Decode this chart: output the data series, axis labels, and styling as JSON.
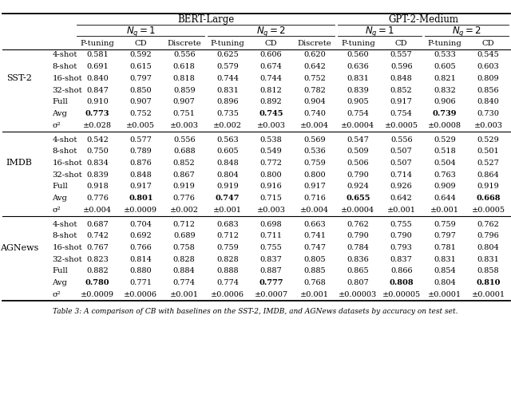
{
  "header_bert": "BERT-Large",
  "header_gpt": "GPT-2-Medium",
  "nq_labels": [
    "N_q = 1",
    "N_q = 2",
    "N_q = 1",
    "N_q = 2"
  ],
  "col_headers": [
    "P-tuning",
    "CD",
    "Discrete",
    "P-tuning",
    "CD",
    "Discrete",
    "P-tuning",
    "CD",
    "P-tuning",
    "CD"
  ],
  "datasets": [
    "SST-2",
    "IMDB",
    "AGNews"
  ],
  "row_labels": [
    "4-shot",
    "8-shot",
    "16-shot",
    "32-shot",
    "Full",
    "Avg",
    "σ²"
  ],
  "data": {
    "SST-2": {
      "4-shot": [
        "0.581",
        "0.592",
        "0.556",
        "0.625",
        "0.606",
        "0.620",
        "0.560",
        "0.557",
        "0.533",
        "0.545"
      ],
      "8-shot": [
        "0.691",
        "0.615",
        "0.618",
        "0.579",
        "0.674",
        "0.642",
        "0.636",
        "0.596",
        "0.605",
        "0.603"
      ],
      "16-shot": [
        "0.840",
        "0.797",
        "0.818",
        "0.744",
        "0.744",
        "0.752",
        "0.831",
        "0.848",
        "0.821",
        "0.809"
      ],
      "32-shot": [
        "0.847",
        "0.850",
        "0.859",
        "0.831",
        "0.812",
        "0.782",
        "0.839",
        "0.852",
        "0.832",
        "0.856"
      ],
      "Full": [
        "0.910",
        "0.907",
        "0.907",
        "0.896",
        "0.892",
        "0.904",
        "0.905",
        "0.917",
        "0.906",
        "0.840"
      ],
      "Avg": [
        "0.773",
        "0.752",
        "0.751",
        "0.735",
        "0.745",
        "0.740",
        "0.754",
        "0.754",
        "0.739",
        "0.730"
      ],
      "σ²": [
        "±0.028",
        "±0.005",
        "±0.003",
        "±0.002",
        "±0.003",
        "±0.004",
        "±0.0004",
        "±0.0005",
        "±0.0008",
        "±0.003"
      ]
    },
    "IMDB": {
      "4-shot": [
        "0.542",
        "0.577",
        "0.556",
        "0.563",
        "0.538",
        "0.569",
        "0.547",
        "0.556",
        "0.529",
        "0.529"
      ],
      "8-shot": [
        "0.750",
        "0.789",
        "0.688",
        "0.605",
        "0.549",
        "0.536",
        "0.509",
        "0.507",
        "0.518",
        "0.501"
      ],
      "16-shot": [
        "0.834",
        "0.876",
        "0.852",
        "0.848",
        "0.772",
        "0.759",
        "0.506",
        "0.507",
        "0.504",
        "0.527"
      ],
      "32-shot": [
        "0.839",
        "0.848",
        "0.867",
        "0.804",
        "0.800",
        "0.800",
        "0.790",
        "0.714",
        "0.763",
        "0.864"
      ],
      "Full": [
        "0.918",
        "0.917",
        "0.919",
        "0.919",
        "0.916",
        "0.917",
        "0.924",
        "0.926",
        "0.909",
        "0.919"
      ],
      "Avg": [
        "0.776",
        "0.801",
        "0.776",
        "0.747",
        "0.715",
        "0.716",
        "0.655",
        "0.642",
        "0.644",
        "0.668"
      ],
      "σ²": [
        "±0.004",
        "±0.0009",
        "±0.002",
        "±0.001",
        "±0.003",
        "±0.004",
        "±0.0004",
        "±0.001",
        "±0.001",
        "±0.0005"
      ]
    },
    "AGNews": {
      "4-shot": [
        "0.687",
        "0.704",
        "0.712",
        "0.683",
        "0.698",
        "0.663",
        "0.762",
        "0.755",
        "0.759",
        "0.762"
      ],
      "8-shot": [
        "0.742",
        "0.692",
        "0.689",
        "0.712",
        "0.711",
        "0.741",
        "0.790",
        "0.790",
        "0.797",
        "0.796"
      ],
      "16-shot": [
        "0.767",
        "0.766",
        "0.758",
        "0.759",
        "0.755",
        "0.747",
        "0.784",
        "0.793",
        "0.781",
        "0.804"
      ],
      "32-shot": [
        "0.823",
        "0.814",
        "0.828",
        "0.828",
        "0.837",
        "0.805",
        "0.836",
        "0.837",
        "0.831",
        "0.831"
      ],
      "Full": [
        "0.882",
        "0.880",
        "0.884",
        "0.888",
        "0.887",
        "0.885",
        "0.865",
        "0.866",
        "0.854",
        "0.858"
      ],
      "Avg": [
        "0.780",
        "0.771",
        "0.774",
        "0.774",
        "0.777",
        "0.768",
        "0.807",
        "0.808",
        "0.804",
        "0.810"
      ],
      "σ²": [
        "±0.0009",
        "±0.0006",
        "±0.001",
        "±0.0006",
        "±0.0007",
        "±0.001",
        "±0.00003",
        "±0.00005",
        "±0.0001",
        "±0.0001"
      ]
    }
  },
  "bold_map": {
    "SST-2": {
      "5": [
        0,
        4,
        8
      ]
    },
    "IMDB": {
      "5": [
        1,
        3,
        6,
        9
      ]
    },
    "AGNews": {
      "5": [
        0,
        4,
        7,
        9
      ]
    }
  },
  "caption": "Table 3: A comparison of CB with baselines on the SST-2, IMDB, and AGNews datasets by accuracy on test set."
}
